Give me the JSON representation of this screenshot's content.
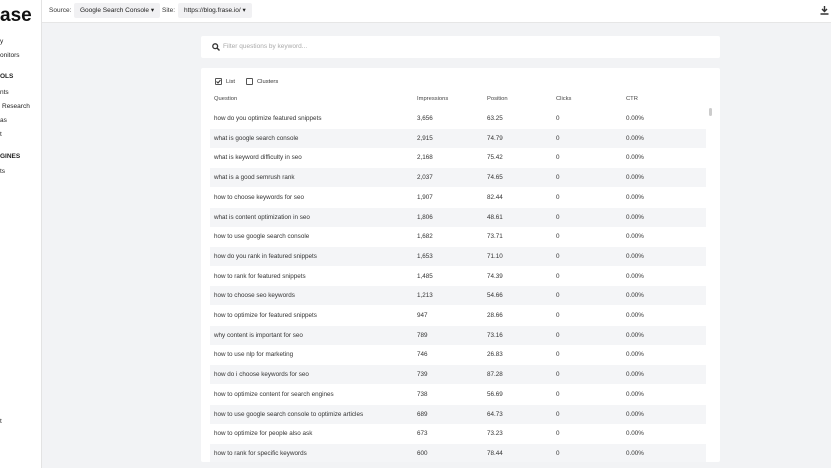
{
  "sidebar": {
    "logo": "ase",
    "items": [
      "y",
      "onitors",
      "OLS",
      "nts",
      "Research",
      "as",
      "t",
      "GINES",
      "ts",
      "t"
    ]
  },
  "toolbar": {
    "source_label": "Source:",
    "source": "Google Search Console",
    "site_label": "Site:",
    "site": "https://blog.frase.io/"
  },
  "search": {
    "placeholder": "Filter questions by keyword..."
  },
  "view": {
    "list": "List",
    "clusters": "Clusters"
  },
  "table": {
    "columns": [
      "Question",
      "Impressions",
      "Position",
      "Clicks",
      "CTR"
    ],
    "rows": [
      [
        "how do you optimize featured snippets",
        "3,656",
        "63.25",
        "0",
        "0.00%"
      ],
      [
        "what is google search console",
        "2,915",
        "74.79",
        "0",
        "0.00%"
      ],
      [
        "what is keyword difficulty in seo",
        "2,168",
        "75.42",
        "0",
        "0.00%"
      ],
      [
        "what is a good semrush rank",
        "2,037",
        "74.65",
        "0",
        "0.00%"
      ],
      [
        "how to choose keywords for seo",
        "1,907",
        "82.44",
        "0",
        "0.00%"
      ],
      [
        "what is content optimization in seo",
        "1,806",
        "48.61",
        "0",
        "0.00%"
      ],
      [
        "how to use google search console",
        "1,682",
        "73.71",
        "0",
        "0.00%"
      ],
      [
        "how do you rank in featured snippets",
        "1,653",
        "71.10",
        "0",
        "0.00%"
      ],
      [
        "how to rank for featured snippets",
        "1,485",
        "74.39",
        "0",
        "0.00%"
      ],
      [
        "how to choose seo keywords",
        "1,213",
        "54.66",
        "0",
        "0.00%"
      ],
      [
        "how to optimize for featured snippets",
        "947",
        "28.66",
        "0",
        "0.00%"
      ],
      [
        "why content is important for seo",
        "789",
        "73.16",
        "0",
        "0.00%"
      ],
      [
        "how to use nlp for marketing",
        "746",
        "26.83",
        "0",
        "0.00%"
      ],
      [
        "how do i choose keywords for seo",
        "739",
        "87.28",
        "0",
        "0.00%"
      ],
      [
        "how to optimize content for search engines",
        "738",
        "56.69",
        "0",
        "0.00%"
      ],
      [
        "how to use google search console to optimize articles",
        "689",
        "64.73",
        "0",
        "0.00%"
      ],
      [
        "how to optimize for people also ask",
        "673",
        "73.23",
        "0",
        "0.00%"
      ],
      [
        "how to rank for specific keywords",
        "600",
        "78.44",
        "0",
        "0.00%"
      ]
    ]
  }
}
